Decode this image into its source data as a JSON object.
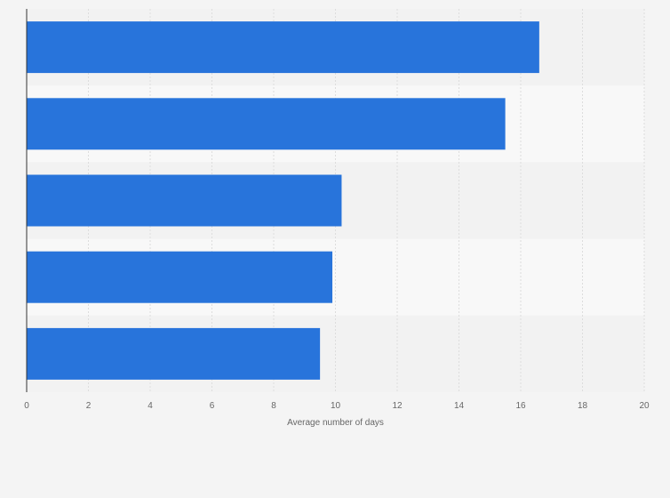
{
  "chart_data": {
    "type": "bar",
    "orientation": "horizontal",
    "categories": [
      "",
      "",
      "",
      "",
      ""
    ],
    "values": [
      16.6,
      15.5,
      10.2,
      9.9,
      9.5
    ],
    "title": "",
    "xlabel": "Average number of days",
    "ylabel": "",
    "xlim": [
      0,
      20
    ],
    "x_ticks": [
      "0",
      "2",
      "4",
      "6",
      "8",
      "10",
      "12",
      "14",
      "16",
      "18",
      "20"
    ],
    "grid": true,
    "legend": "none",
    "colors": {
      "bar": "#2874db",
      "band_even": "#f2f2f2",
      "band_odd": "#f8f8f8",
      "grid": "#dddddd",
      "axis": "#333333",
      "text": "#666666",
      "background": "#f4f4f4"
    }
  }
}
